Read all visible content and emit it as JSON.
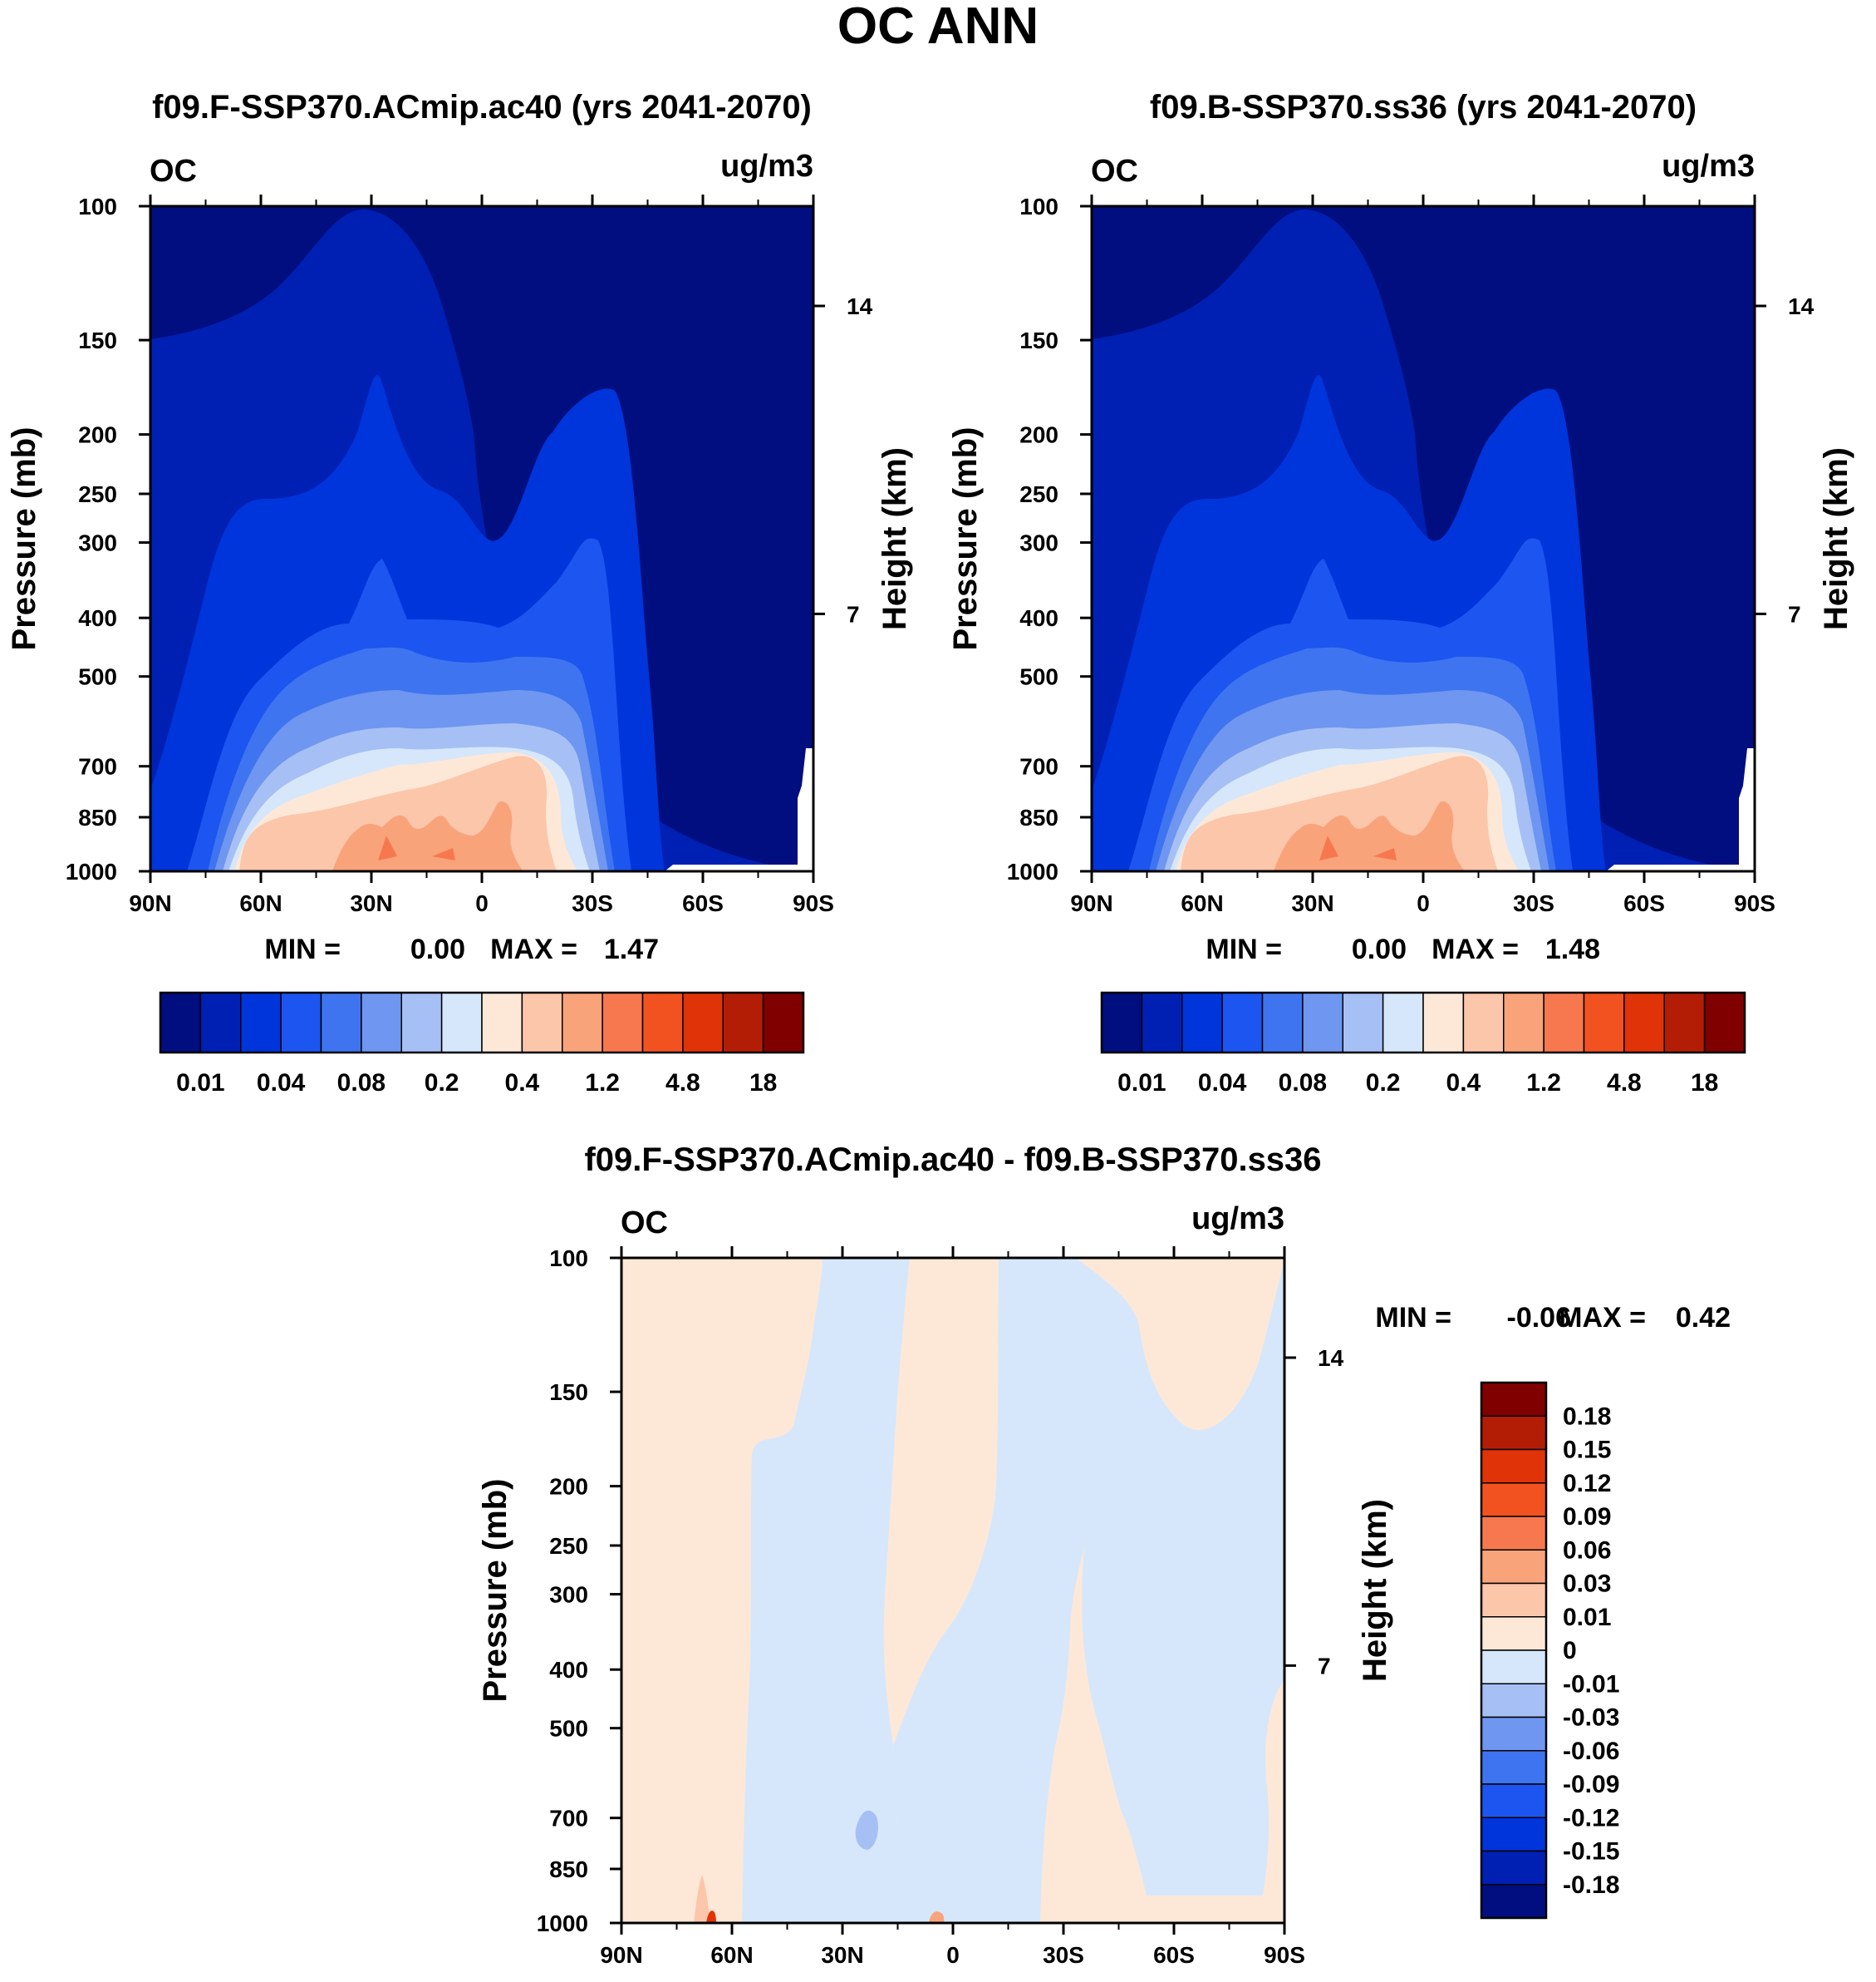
{
  "figure_title": "OC ANN",
  "chart_data": [
    {
      "type": "heatmap",
      "title": "f09.F-SSP370.ACmip.ac40 (yrs 2041-2070)",
      "left_label": "OC",
      "right_label": "ug/m3",
      "ylabel": "Pressure (mb)",
      "y2label": "Height (km)",
      "x_ticklabels": [
        "90N",
        "60N",
        "30N",
        "0",
        "30S",
        "60S",
        "90S"
      ],
      "y_ticklabels": [
        "100",
        "150",
        "200",
        "250",
        "300",
        "400",
        "500",
        "700",
        "850",
        "1000"
      ],
      "y2_ticklabels": [
        "14",
        "7"
      ],
      "min_label": "MIN =",
      "min_value": "0.00",
      "max_label": "MAX =",
      "max_value": "1.47",
      "colorbar": {
        "colors": [
          "#000e80",
          "#0020b4",
          "#0035dc",
          "#1c55f0",
          "#3f74f0",
          "#6f96f0",
          "#a6c0f5",
          "#d6e7fb",
          "#fde8d8",
          "#fbc6aa",
          "#f9a37b",
          "#f7784e",
          "#f25220",
          "#e03308",
          "#b31d06",
          "#800000"
        ],
        "labels": [
          "0.01",
          "0.04",
          "0.08",
          "0.2",
          "0.4",
          "1.2",
          "4.8",
          "18"
        ]
      }
    },
    {
      "type": "heatmap",
      "title": "f09.B-SSP370.ss36 (yrs 2041-2070)",
      "left_label": "OC",
      "right_label": "ug/m3",
      "ylabel": "Pressure (mb)",
      "y2label": "Height (km)",
      "x_ticklabels": [
        "90N",
        "60N",
        "30N",
        "0",
        "30S",
        "60S",
        "90S"
      ],
      "y_ticklabels": [
        "100",
        "150",
        "200",
        "250",
        "300",
        "400",
        "500",
        "700",
        "850",
        "1000"
      ],
      "y2_ticklabels": [
        "14",
        "7"
      ],
      "min_label": "MIN =",
      "min_value": "0.00",
      "max_label": "MAX =",
      "max_value": "1.48",
      "colorbar": {
        "colors": [
          "#000e80",
          "#0020b4",
          "#0035dc",
          "#1c55f0",
          "#3f74f0",
          "#6f96f0",
          "#a6c0f5",
          "#d6e7fb",
          "#fde8d8",
          "#fbc6aa",
          "#f9a37b",
          "#f7784e",
          "#f25220",
          "#e03308",
          "#b31d06",
          "#800000"
        ],
        "labels": [
          "0.01",
          "0.04",
          "0.08",
          "0.2",
          "0.4",
          "1.2",
          "4.8",
          "18"
        ]
      }
    },
    {
      "type": "heatmap",
      "title": "f09.F-SSP370.ACmip.ac40 - f09.B-SSP370.ss36",
      "left_label": "OC",
      "right_label": "ug/m3",
      "ylabel": "Pressure (mb)",
      "y2label": "Height (km)",
      "x_ticklabels": [
        "90N",
        "60N",
        "30N",
        "0",
        "30S",
        "60S",
        "90S"
      ],
      "y_ticklabels": [
        "100",
        "150",
        "200",
        "250",
        "300",
        "400",
        "500",
        "700",
        "850",
        "1000"
      ],
      "y2_ticklabels": [
        "14",
        "7"
      ],
      "min_label": "MIN =",
      "min_value": "-0.06",
      "max_label": "MAX =",
      "max_value": "0.42",
      "colorbar": {
        "colors": [
          "#800000",
          "#b31d06",
          "#e03308",
          "#f25220",
          "#f7784e",
          "#f9a37b",
          "#fbc6aa",
          "#fde8d8",
          "#d6e7fb",
          "#a6c0f5",
          "#6f96f0",
          "#3f74f0",
          "#1c55f0",
          "#0035dc",
          "#0020b4",
          "#000e80"
        ],
        "labels": [
          "0.18",
          "0.15",
          "0.12",
          "0.09",
          "0.06",
          "0.03",
          "0.01",
          "0",
          "-0.01",
          "-0.03",
          "-0.06",
          "-0.09",
          "-0.12",
          "-0.15",
          "-0.18"
        ]
      }
    }
  ]
}
